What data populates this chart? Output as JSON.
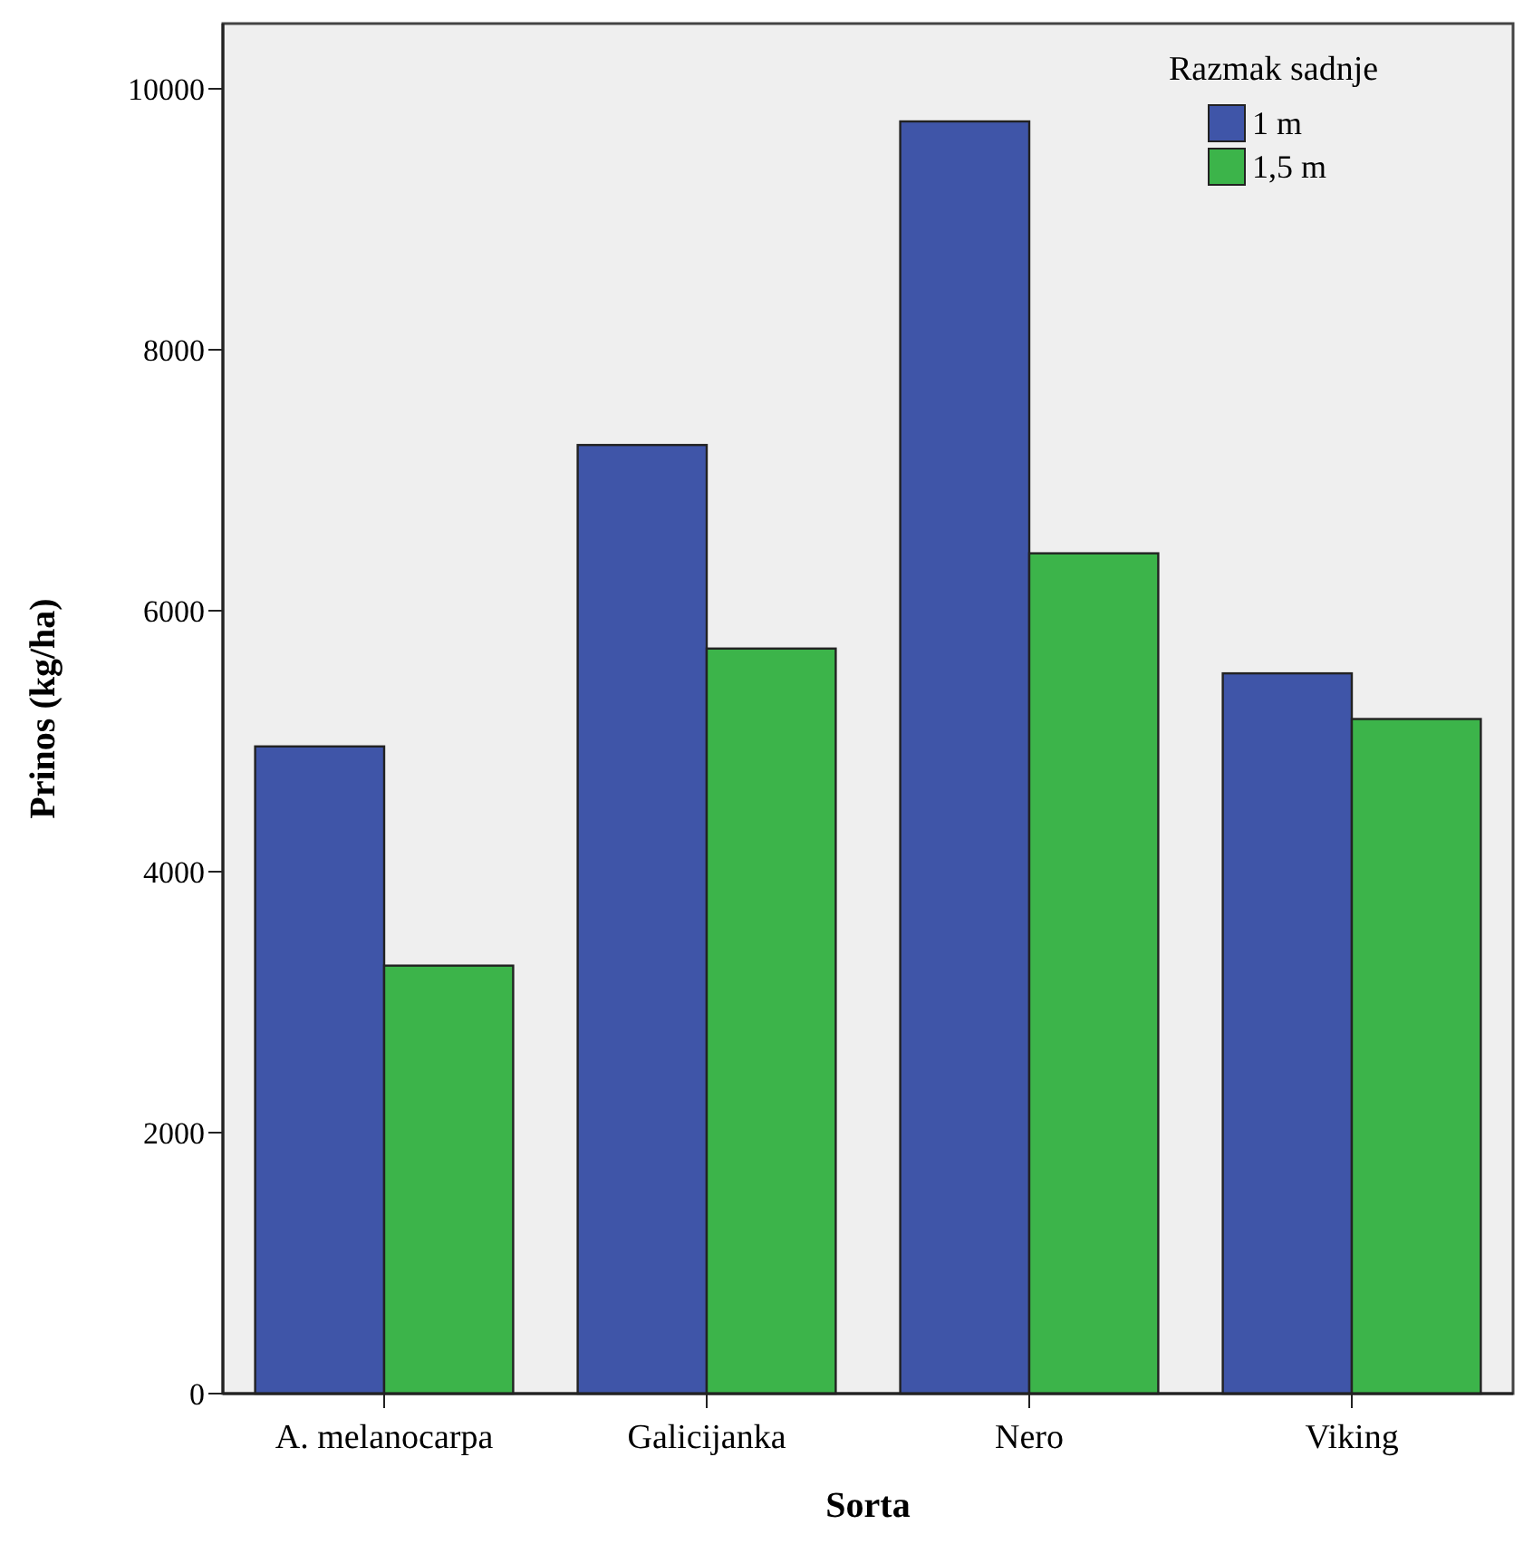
{
  "chart_data": {
    "type": "bar",
    "xlabel": "Sorta",
    "ylabel": "Prinos (kg/ha)",
    "legend_title": "Razmak sadnje",
    "categories": [
      "A. melanocarpa",
      "Galicijanka",
      "Nero",
      "Viking"
    ],
    "series": [
      {
        "name": "1 m",
        "color": "#3f55a8",
        "values": [
          4960,
          7270,
          9750,
          5520
        ]
      },
      {
        "name": "1,5 m",
        "color": "#3cb44a",
        "values": [
          3280,
          5710,
          6440,
          5170
        ]
      }
    ],
    "ylim": [
      0,
      10500
    ],
    "yticks": [
      0,
      2000,
      4000,
      6000,
      8000,
      10000
    ],
    "grid": false,
    "legend": "top right"
  }
}
